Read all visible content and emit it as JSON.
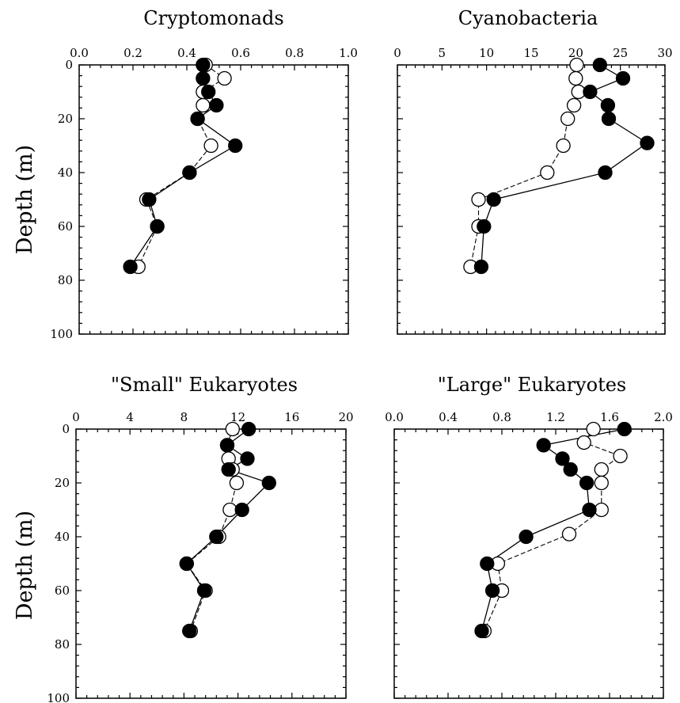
{
  "figure": {
    "y_axis_title": "Depth (m)"
  },
  "chart_data": [
    {
      "type": "scatter",
      "title": "Cryptomonads",
      "xlabel": "",
      "ylabel": "Depth (m)",
      "xlim": [
        0,
        1.0
      ],
      "ylim": [
        100,
        0
      ],
      "x_ticks": [
        "0.0",
        "0.2",
        "0.4",
        "0.6",
        "0.8",
        "1.0"
      ],
      "y_ticks": [
        "0",
        "20",
        "40",
        "60",
        "80",
        "100"
      ],
      "x_axis_position": "top",
      "y_inverted": true,
      "series": [
        {
          "marker": "filled-circle",
          "line": "solid",
          "points": [
            [
              0.46,
              0
            ],
            [
              0.46,
              5
            ],
            [
              0.48,
              10
            ],
            [
              0.51,
              15
            ],
            [
              0.44,
              20
            ],
            [
              0.58,
              30
            ],
            [
              0.41,
              40
            ],
            [
              0.26,
              50
            ],
            [
              0.29,
              60
            ],
            [
              0.19,
              75
            ]
          ]
        },
        {
          "marker": "open-circle",
          "line": "dashed",
          "points": [
            [
              0.47,
              0
            ],
            [
              0.54,
              5
            ],
            [
              0.46,
              10
            ],
            [
              0.46,
              15
            ],
            [
              0.44,
              20
            ],
            [
              0.49,
              30
            ],
            [
              0.41,
              40
            ],
            [
              0.25,
              50
            ],
            [
              0.29,
              60
            ],
            [
              0.22,
              75
            ]
          ]
        }
      ]
    },
    {
      "type": "scatter",
      "title": "Cyanobacteria",
      "xlabel": "",
      "ylabel": "",
      "xlim": [
        0,
        30
      ],
      "ylim": [
        100,
        0
      ],
      "x_ticks": [
        "0",
        "5",
        "10",
        "15",
        "20",
        "25",
        "30"
      ],
      "y_ticks": [],
      "x_axis_position": "top",
      "y_inverted": true,
      "series": [
        {
          "marker": "filled-circle",
          "line": "solid",
          "points": [
            [
              22.7,
              0
            ],
            [
              25.3,
              5
            ],
            [
              21.6,
              10
            ],
            [
              23.6,
              15
            ],
            [
              23.7,
              20
            ],
            [
              28.0,
              29
            ],
            [
              23.3,
              40
            ],
            [
              10.8,
              50
            ],
            [
              9.7,
              60
            ],
            [
              9.4,
              75
            ]
          ]
        },
        {
          "marker": "open-circle",
          "line": "dashed",
          "points": [
            [
              20.1,
              0
            ],
            [
              20.0,
              5
            ],
            [
              20.3,
              10
            ],
            [
              19.8,
              15
            ],
            [
              19.1,
              20
            ],
            [
              18.6,
              30
            ],
            [
              16.8,
              40
            ],
            [
              9.1,
              50
            ],
            [
              9.1,
              60
            ],
            [
              8.2,
              75
            ]
          ]
        }
      ]
    },
    {
      "type": "scatter",
      "title": "\"Small\" Eukaryotes",
      "xlabel": "",
      "ylabel": "Depth (m)",
      "xlim": [
        0,
        20
      ],
      "ylim": [
        100,
        0
      ],
      "x_ticks": [
        "0",
        "4",
        "8",
        "12",
        "16",
        "20"
      ],
      "y_ticks": [
        "0",
        "20",
        "40",
        "60",
        "80",
        "100"
      ],
      "x_axis_position": "top",
      "y_inverted": true,
      "series": [
        {
          "marker": "filled-circle",
          "line": "solid",
          "points": [
            [
              12.8,
              0
            ],
            [
              11.2,
              6
            ],
            [
              12.7,
              11
            ],
            [
              11.3,
              15
            ],
            [
              14.3,
              20
            ],
            [
              12.3,
              30
            ],
            [
              10.4,
              40
            ],
            [
              8.2,
              50
            ],
            [
              9.5,
              60
            ],
            [
              8.4,
              75
            ]
          ]
        },
        {
          "marker": "open-circle",
          "line": "dashed",
          "points": [
            [
              11.6,
              0
            ],
            [
              11.2,
              6
            ],
            [
              11.3,
              11
            ],
            [
              11.6,
              15
            ],
            [
              11.9,
              20
            ],
            [
              11.4,
              30
            ],
            [
              10.6,
              40
            ],
            [
              8.2,
              50
            ],
            [
              9.6,
              60
            ],
            [
              8.5,
              75
            ]
          ]
        }
      ]
    },
    {
      "type": "scatter",
      "title": "\"Large\" Eukaryotes",
      "xlabel": "",
      "ylabel": "",
      "xlim": [
        0,
        2.0
      ],
      "ylim": [
        100,
        0
      ],
      "x_ticks": [
        "0.0",
        "0.4",
        "0.8",
        "1.2",
        "1.6",
        "2.0"
      ],
      "y_ticks": [],
      "x_axis_position": "top",
      "y_inverted": true,
      "series": [
        {
          "marker": "filled-circle",
          "line": "solid",
          "points": [
            [
              1.71,
              0
            ],
            [
              1.11,
              6
            ],
            [
              1.25,
              11
            ],
            [
              1.31,
              15
            ],
            [
              1.43,
              20
            ],
            [
              1.45,
              30
            ],
            [
              0.98,
              40
            ],
            [
              0.69,
              50
            ],
            [
              0.73,
              60
            ],
            [
              0.65,
              75
            ]
          ]
        },
        {
          "marker": "open-circle",
          "line": "dashed",
          "points": [
            [
              1.48,
              0
            ],
            [
              1.41,
              5
            ],
            [
              1.68,
              10
            ],
            [
              1.54,
              15
            ],
            [
              1.54,
              20
            ],
            [
              1.54,
              30
            ],
            [
              1.3,
              39
            ],
            [
              0.77,
              50
            ],
            [
              0.8,
              60
            ],
            [
              0.67,
              75
            ]
          ]
        }
      ]
    }
  ]
}
